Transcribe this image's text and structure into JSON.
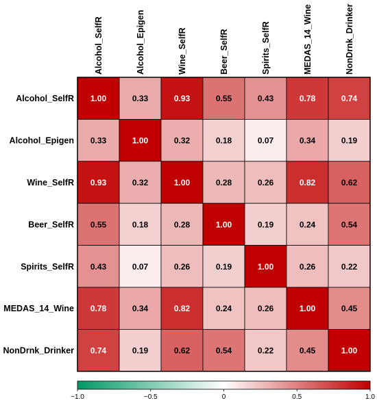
{
  "chart_data": {
    "type": "heatmap",
    "variables": [
      "Alcohol_SelfR",
      "Alcohol_Epigen",
      "Wine_SelfR",
      "Beer_SelfR",
      "Spirits_SelfR",
      "MEDAS_14_Wine",
      "NonDrnk_Drinker"
    ],
    "matrix": [
      [
        1.0,
        0.33,
        0.93,
        0.55,
        0.43,
        0.78,
        0.74
      ],
      [
        0.33,
        1.0,
        0.32,
        0.18,
        0.07,
        0.34,
        0.19
      ],
      [
        0.93,
        0.32,
        1.0,
        0.28,
        0.26,
        0.82,
        0.62
      ],
      [
        0.55,
        0.18,
        0.28,
        1.0,
        0.19,
        0.24,
        0.54
      ],
      [
        0.43,
        0.07,
        0.26,
        0.19,
        1.0,
        0.26,
        0.22
      ],
      [
        0.78,
        0.34,
        0.82,
        0.24,
        0.26,
        1.0,
        0.45
      ],
      [
        0.74,
        0.19,
        0.62,
        0.54,
        0.22,
        0.45,
        1.0
      ]
    ],
    "colorbar": {
      "range": [
        -1.0,
        1.0
      ],
      "ticks": [
        -1.0,
        -0.5,
        0,
        0.5,
        1.0
      ],
      "tick_labels": [
        "−1.0",
        "−0.5",
        "0",
        "0.5",
        "1.0"
      ],
      "colors": {
        "low": "#009966",
        "mid": "#ffffff",
        "high": "#c00000"
      }
    },
    "grid": true,
    "legend_placement": "bottom"
  }
}
